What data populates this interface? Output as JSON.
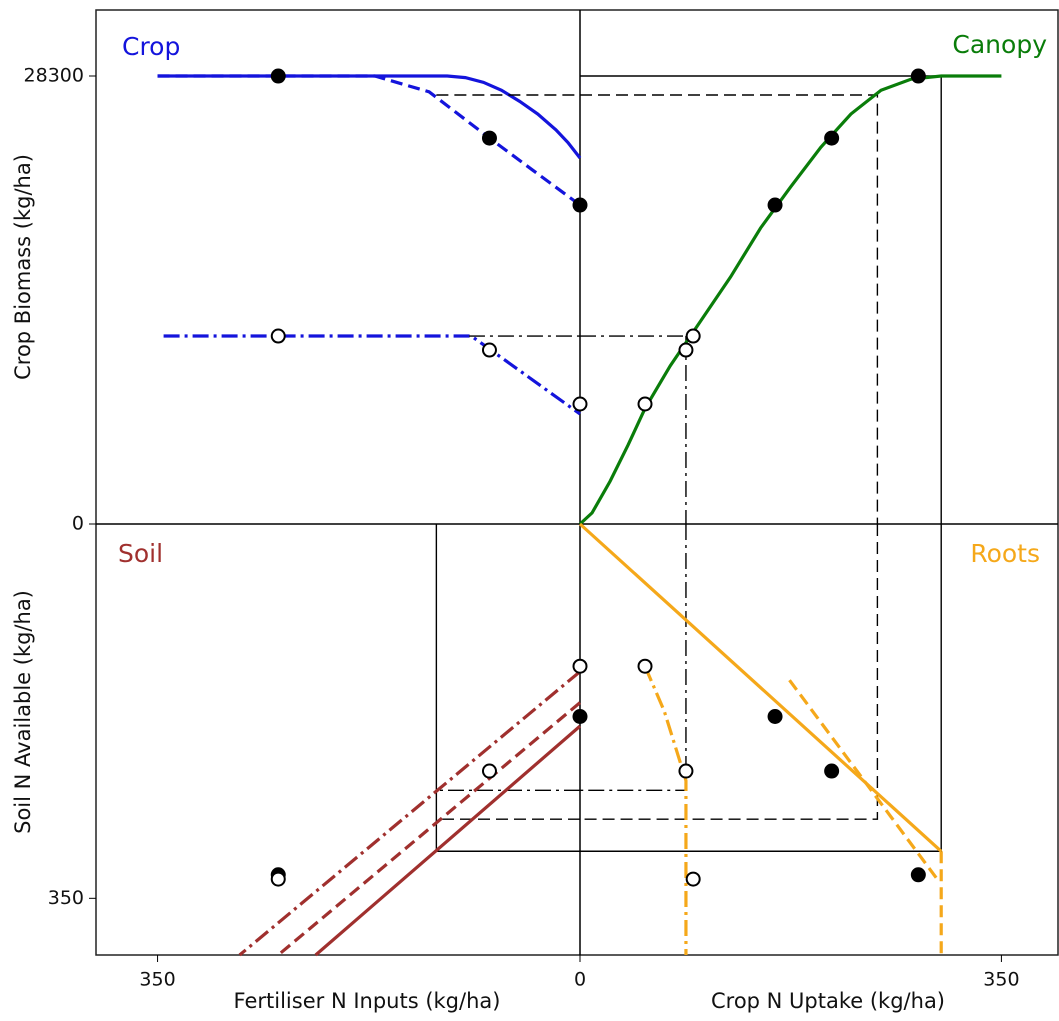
{
  "chart_data": {
    "type": "quadrant",
    "axes": {
      "x_left": {
        "label": "Fertiliser N Inputs (kg/ha)",
        "lim": [
          401,
          0
        ],
        "ticks": [
          350,
          0
        ]
      },
      "x_right": {
        "label": "Crop N Uptake (kg/ha)",
        "lim": [
          0,
          397
        ],
        "ticks": [
          350
        ]
      },
      "y_top": {
        "label": "Crop Biomass (kg/ha)",
        "lim": [
          0,
          32470
        ],
        "ticks": [
          0,
          28300
        ]
      },
      "y_bottom": {
        "label": "Soil N Available (kg/ha)",
        "lim": [
          0,
          403
        ],
        "ticks": [
          350
        ]
      }
    },
    "quadrants": [
      {
        "label": "Crop",
        "color": "#1414dc",
        "x_axis": "x_left",
        "y_axis": "y_top",
        "series": [
          {
            "style": "solid",
            "color": "#1414dc",
            "x": [
              350,
              110,
              95,
              80,
              65,
              50,
              35,
              20,
              10,
              0
            ],
            "y": [
              28300,
              28300,
              28200,
              27900,
              27400,
              26700,
              25900,
              24900,
              24100,
              23120
            ]
          },
          {
            "style": "dashed",
            "color": "#1414dc",
            "x": [
              350,
              170,
              125,
              75,
              40,
              0
            ],
            "y": [
              28300,
              28300,
              27300,
              24380,
              22400,
              20150
            ]
          },
          {
            "style": "dashdot",
            "color": "#1414dc",
            "x": [
              345,
              90,
              0
            ],
            "y": [
              11875,
              11875,
              6950
            ]
          },
          {
            "style": "dashed",
            "color": "#000000",
            "x": [
              119,
              0
            ],
            "y": [
              27100,
              27100
            ]
          },
          {
            "style": "dashdot",
            "color": "#000000",
            "x": [
              92,
              0
            ],
            "y": [
              11875,
              11875
            ]
          }
        ],
        "filled_points": {
          "x": [
            250,
            75,
            0
          ],
          "y": [
            28300,
            24380,
            20150
          ]
        },
        "open_points": {
          "x": [
            250,
            75,
            0
          ],
          "y": [
            11875,
            10990,
            7580
          ]
        }
      },
      {
        "label": "Canopy",
        "color": "#0a7d0a",
        "x_axis": "x_right",
        "y_axis": "y_top",
        "series": [
          {
            "style": "solid",
            "color": "#000000",
            "x": [
              0,
              300,
              300
            ],
            "y": [
              28300,
              28300,
              0
            ]
          },
          {
            "style": "dashed",
            "color": "#000000",
            "x": [
              0,
              247,
              247
            ],
            "y": [
              27100,
              27100,
              0
            ]
          },
          {
            "style": "dashdot",
            "color": "#000000",
            "x": [
              0,
              94
            ],
            "y": [
              11875,
              11875
            ]
          },
          {
            "style": "dashdot",
            "color": "#000000",
            "x": [
              88,
              88
            ],
            "y": [
              11875,
              0
            ]
          },
          {
            "style": "solid",
            "color": "#0a7d0a",
            "x": [
              0,
              10,
              25,
              40,
              54,
              75,
              100,
              125,
              150,
              175,
              200,
              225,
              250,
              275,
              300,
              350
            ],
            "y": [
              0,
              700,
              2700,
              5000,
              7300,
              10000,
              12800,
              15600,
              18700,
              21300,
              23800,
              25900,
              27400,
              28100,
              28300,
              28300
            ]
          }
        ],
        "filled_points": {
          "x": [
            281,
            209,
            162
          ],
          "y": [
            28300,
            24380,
            20150
          ]
        },
        "open_points": {
          "x": [
            94,
            88,
            54
          ],
          "y": [
            11875,
            10990,
            7580
          ]
        }
      },
      {
        "label": "Soil",
        "color": "#a0302e",
        "x_axis": "x_left",
        "y_axis": "y_bottom",
        "series": [
          {
            "style": "solid",
            "color": "#000000",
            "x": [
              0,
              119,
              119
            ],
            "y": [
              306,
              306,
              0
            ]
          },
          {
            "style": "dashed",
            "color": "#000000",
            "x": [
              0,
              119
            ],
            "y": [
              276,
              276
            ]
          },
          {
            "style": "dashdot",
            "color": "#000000",
            "x": [
              0,
              119
            ],
            "y": [
              249,
              249
            ]
          },
          {
            "style": "solid",
            "color": "#a0302e",
            "x": [
              0,
              219
            ],
            "y": [
              189,
              403
            ]
          },
          {
            "style": "dashed",
            "color": "#a0302e",
            "x": [
              0,
              250
            ],
            "y": [
              167,
              403
            ]
          },
          {
            "style": "dashdot",
            "color": "#a0302e",
            "x": [
              0,
              282
            ],
            "y": [
              138,
              403
            ]
          }
        ],
        "filled_points": {
          "x": [
            250,
            0
          ],
          "y": [
            328,
            180
          ]
        },
        "open_points": {
          "x": [
            250,
            75,
            0
          ],
          "y": [
            332,
            231,
            133
          ]
        }
      },
      {
        "label": "Roots",
        "color": "#f5a81a",
        "x_axis": "x_right",
        "y_axis": "y_bottom",
        "series": [
          {
            "style": "solid",
            "color": "#000000",
            "x": [
              300,
              300,
              0
            ],
            "y": [
              0,
              306,
              306
            ]
          },
          {
            "style": "dashed",
            "color": "#000000",
            "x": [
              247,
              247,
              0
            ],
            "y": [
              0,
              276,
              276
            ]
          },
          {
            "style": "dashdot",
            "color": "#000000",
            "x": [
              88,
              88,
              0
            ],
            "y": [
              0,
              249,
              249
            ]
          },
          {
            "style": "solid",
            "color": "#f5a81a",
            "x": [
              0,
              300
            ],
            "y": [
              0,
              306
            ]
          },
          {
            "style": "dashed",
            "color": "#f5a81a",
            "x": [
              174,
              296
            ],
            "y": [
              146,
              331
            ]
          },
          {
            "style": "dashed",
            "color": "#f5a81a",
            "x": [
              300,
              300
            ],
            "y": [
              306,
              403
            ]
          },
          {
            "style": "dashdot",
            "color": "#f5a81a",
            "x": [
              54,
              70,
              88,
              88
            ],
            "y": [
              133,
              175,
              240,
              403
            ]
          }
        ],
        "filled_points": {
          "x": [
            162,
            209,
            281
          ],
          "y": [
            180,
            231,
            328
          ]
        },
        "open_points": {
          "x": [
            54,
            88,
            94
          ],
          "y": [
            133,
            231,
            332
          ]
        }
      }
    ]
  }
}
